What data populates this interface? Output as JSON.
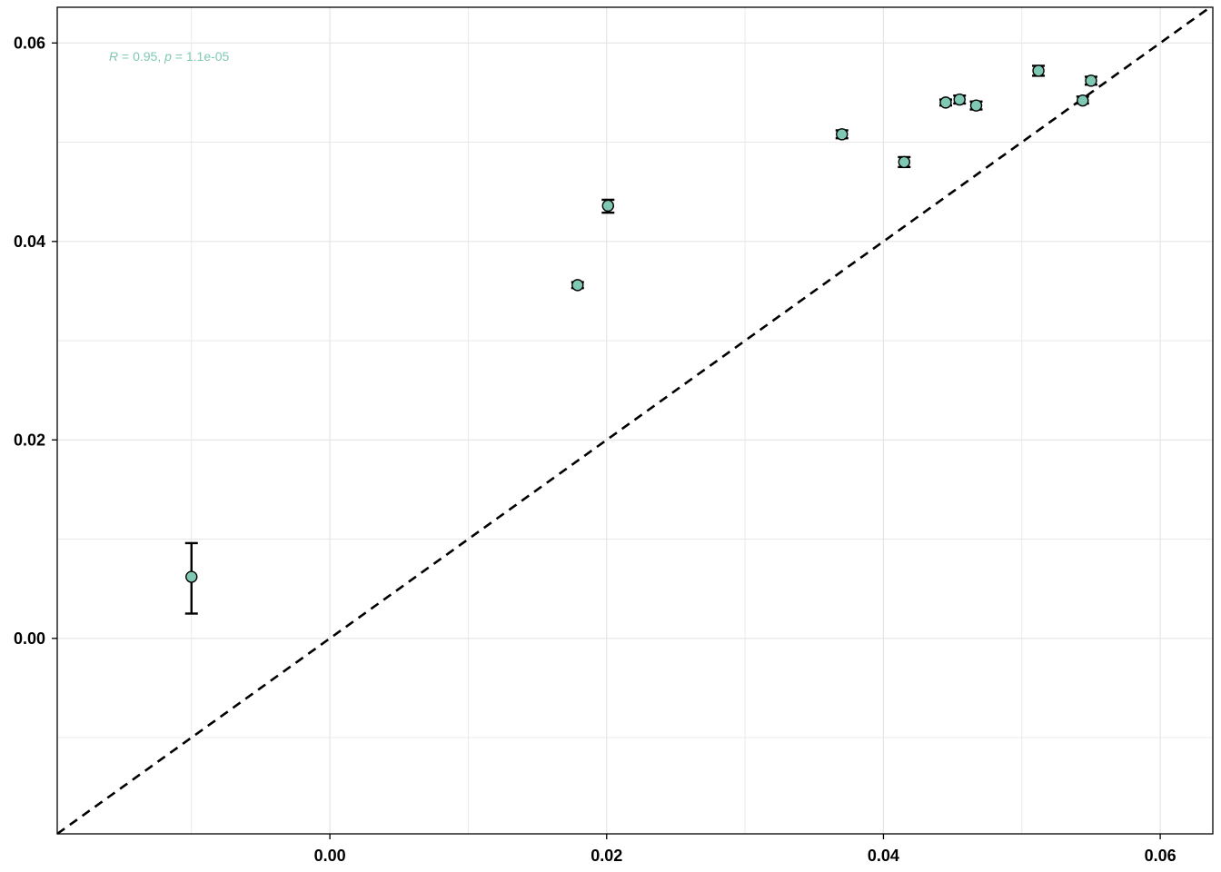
{
  "chart_data": {
    "type": "scatter",
    "title": "",
    "xlabel": "",
    "ylabel": "",
    "xlim": [
      -0.0197,
      0.0638
    ],
    "ylim": [
      -0.0197,
      0.0636
    ],
    "x_ticks": [
      0.0,
      0.02,
      0.04,
      0.06
    ],
    "x_tick_labels": [
      "0.00",
      "0.02",
      "0.04",
      "0.06"
    ],
    "y_ticks": [
      0.0,
      0.02,
      0.04,
      0.06
    ],
    "y_tick_labels": [
      "0.00",
      "0.02",
      "0.04",
      "0.06"
    ],
    "x_minor_gridlines": [
      -0.01,
      0.01,
      0.03,
      0.05
    ],
    "y_minor_gridlines": [
      -0.01,
      0.01,
      0.03,
      0.05
    ],
    "grid": true,
    "reference_line": {
      "type": "identity",
      "slope": 1,
      "intercept": 0,
      "style": "dashed"
    },
    "annotation": {
      "r_label": "R",
      "r_text": " = 0.95, ",
      "p_label": "p",
      "p_text": " = 1.1e-05"
    },
    "points": [
      {
        "x": -0.01,
        "y": 0.0062,
        "ymin": 0.0025,
        "ymax": 0.0096
      },
      {
        "x": 0.0179,
        "y": 0.0356,
        "ymin": 0.0353,
        "ymax": 0.0359
      },
      {
        "x": 0.0201,
        "y": 0.0436,
        "ymin": 0.0429,
        "ymax": 0.0442
      },
      {
        "x": 0.037,
        "y": 0.0508,
        "ymin": 0.0504,
        "ymax": 0.0512
      },
      {
        "x": 0.0415,
        "y": 0.048,
        "ymin": 0.0475,
        "ymax": 0.0485
      },
      {
        "x": 0.0445,
        "y": 0.054,
        "ymin": 0.0537,
        "ymax": 0.0543
      },
      {
        "x": 0.0455,
        "y": 0.0543,
        "ymin": 0.0539,
        "ymax": 0.0547
      },
      {
        "x": 0.0467,
        "y": 0.0537,
        "ymin": 0.0533,
        "ymax": 0.0541
      },
      {
        "x": 0.0512,
        "y": 0.0572,
        "ymin": 0.0567,
        "ymax": 0.0577
      },
      {
        "x": 0.0544,
        "y": 0.0542,
        "ymin": 0.0539,
        "ymax": 0.0546
      },
      {
        "x": 0.055,
        "y": 0.0562,
        "ymin": 0.0558,
        "ymax": 0.0566
      }
    ]
  },
  "colors": {
    "point_fill": "#7fc8b4",
    "point_stroke": "#000000",
    "annotation": "#7fc8b4",
    "grid": "#e5e5e5",
    "axis": "#000000"
  }
}
